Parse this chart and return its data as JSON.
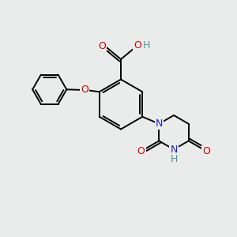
{
  "background_color": "#eaecec",
  "bond_color": "#000000",
  "atom_colors": {
    "O": "#cc0000",
    "N": "#2222cc",
    "H": "#4a9a9a",
    "C": "#000000"
  },
  "figsize": [
    3.0,
    3.0
  ],
  "dpi": 100
}
